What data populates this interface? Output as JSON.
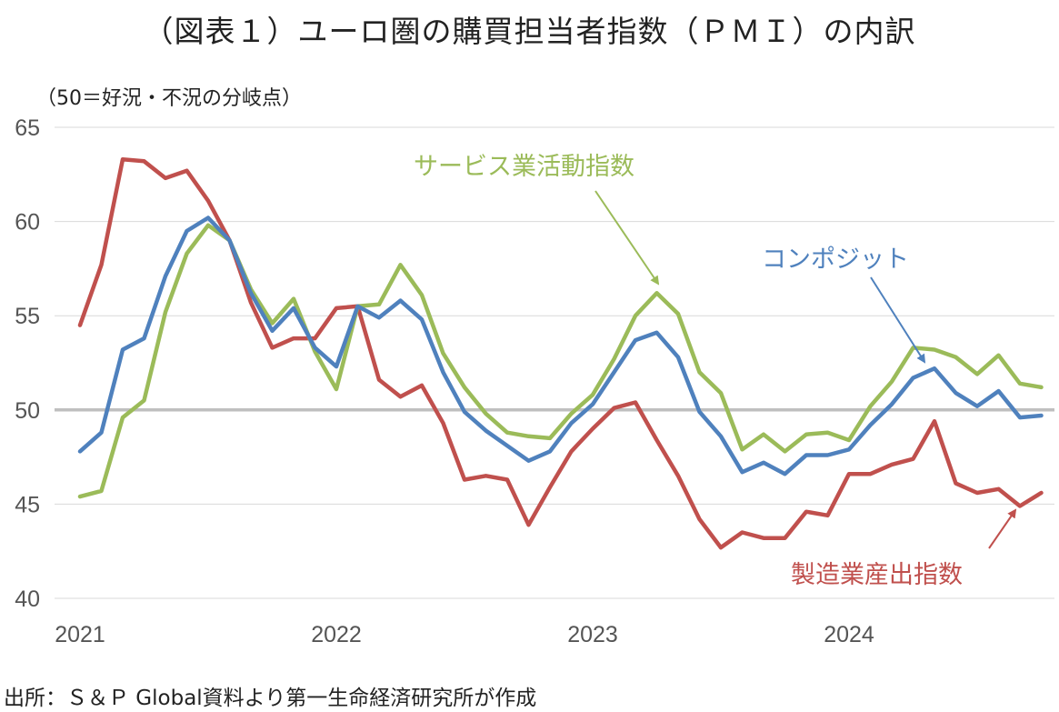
{
  "title": "（図表１）ユーロ圏の購買担当者指数（ＰＭＩ）の内訳",
  "y_note": "（50＝好況・不況の分岐点）",
  "source": "出所：Ｓ＆Ｐ Global資料より第一生命経済研究所が作成",
  "chart_data": {
    "type": "line",
    "title": "（図表１）ユーロ圏の購買担当者指数（ＰＭＩ）の内訳",
    "ylabel": "（50＝好況・不況の分岐点）",
    "xlabel": "",
    "ylim": [
      40,
      65
    ],
    "y_ticks": [
      "40",
      "45",
      "50",
      "55",
      "60",
      "65"
    ],
    "x_ticks": [
      "2021",
      "2022",
      "2023",
      "2024"
    ],
    "x_start": "2021-01",
    "x_end": "2024-10",
    "reference_line": {
      "y": 50,
      "color": "#bfbfbf"
    },
    "grid": "horizontal",
    "series": [
      {
        "name": "製造業産出指数",
        "color": "#c0504d",
        "values": [
          54.5,
          57.7,
          63.3,
          63.2,
          62.3,
          62.7,
          61.1,
          59.0,
          55.7,
          53.3,
          53.8,
          53.8,
          55.4,
          55.5,
          51.6,
          50.7,
          51.3,
          49.3,
          46.3,
          46.5,
          46.3,
          43.9,
          45.9,
          47.8,
          49.0,
          50.1,
          50.4,
          48.4,
          46.5,
          44.2,
          42.7,
          43.5,
          43.2,
          43.2,
          44.6,
          44.4,
          46.6,
          46.6,
          47.1,
          47.4,
          49.4,
          46.1,
          45.6,
          45.8,
          44.9,
          45.6
        ]
      },
      {
        "name": "サービス業活動指数",
        "color": "#9bbb59",
        "values": [
          45.4,
          45.7,
          49.6,
          50.5,
          55.2,
          58.3,
          59.8,
          59.0,
          56.4,
          54.6,
          55.9,
          53.1,
          51.1,
          55.5,
          55.6,
          57.7,
          56.1,
          53.0,
          51.2,
          49.8,
          48.8,
          48.6,
          48.5,
          49.8,
          50.8,
          52.7,
          55.0,
          56.2,
          55.1,
          52.0,
          50.9,
          47.9,
          48.7,
          47.8,
          48.7,
          48.8,
          48.4,
          50.2,
          51.5,
          53.3,
          53.2,
          52.8,
          51.9,
          52.9,
          51.4,
          51.2
        ]
      },
      {
        "name": "コンポジット",
        "color": "#4f81bd",
        "values": [
          47.8,
          48.8,
          53.2,
          53.8,
          57.1,
          59.5,
          60.2,
          59.0,
          56.2,
          54.2,
          55.4,
          53.3,
          52.3,
          55.5,
          54.9,
          55.8,
          54.8,
          52.0,
          49.9,
          48.9,
          48.1,
          47.3,
          47.8,
          49.3,
          50.3,
          52.0,
          53.7,
          54.1,
          52.8,
          49.9,
          48.6,
          46.7,
          47.2,
          46.6,
          47.6,
          47.6,
          47.9,
          49.2,
          50.3,
          51.7,
          52.2,
          50.9,
          50.2,
          51.0,
          49.6,
          49.7
        ]
      }
    ],
    "annotations": [
      {
        "text": "サービス業活動指数",
        "color": "#9bbb59"
      },
      {
        "text": "コンポジット",
        "color": "#4f81bd"
      },
      {
        "text": "製造業産出指数",
        "color": "#c0504d"
      }
    ]
  }
}
